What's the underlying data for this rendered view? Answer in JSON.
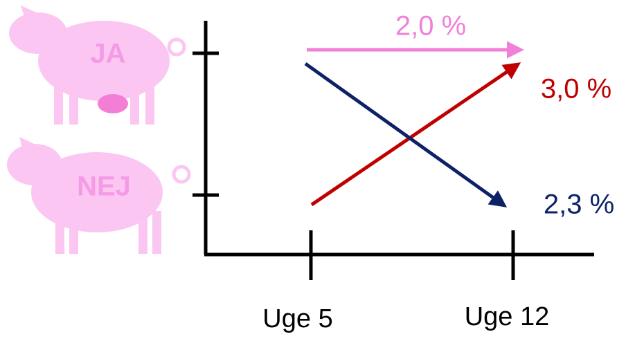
{
  "y_labels": [
    "JA",
    "NEJ"
  ],
  "x_labels": [
    "Uge 5",
    "Uge 12"
  ],
  "arrows": [
    {
      "label": "2,0 %",
      "color": "#f080d8"
    },
    {
      "label": "3,0 %",
      "color": "#c00000"
    },
    {
      "label": "2,3 %",
      "color": "#0d2266"
    }
  ]
}
